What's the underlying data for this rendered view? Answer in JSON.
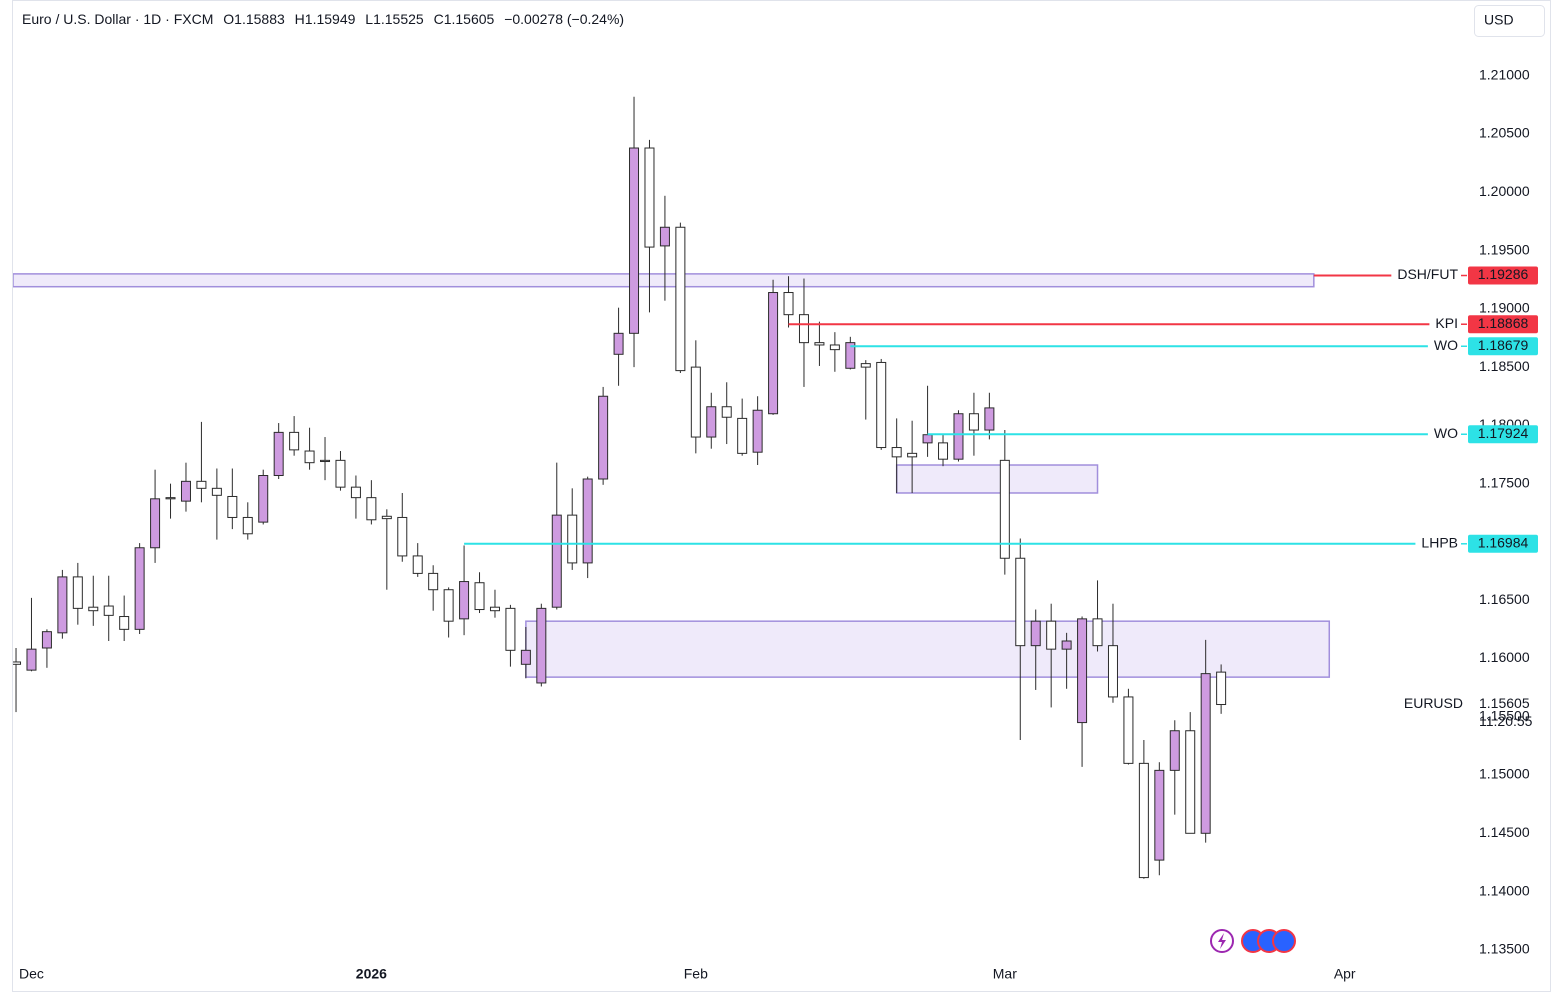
{
  "header": {
    "symbol": "Euro / U.S. Dollar · 1D · FXCM",
    "ohlc_labels": [
      "O",
      "H",
      "L",
      "C"
    ],
    "change": "−0.00278 (−0.24%)",
    "currency": "USD"
  },
  "chart_data": {
    "type": "candlestick",
    "symbol_short": "EURUSD",
    "countdown": "11:20:55",
    "up_color": "#ce9be0",
    "down_color": "#ffffff",
    "border_color": "#2b2b2b",
    "categories": [
      null,
      "Dec",
      null,
      null,
      null,
      null,
      null,
      null,
      null,
      null,
      null,
      null,
      null,
      null,
      null,
      null,
      null,
      null,
      null,
      null,
      null,
      null,
      null,
      "2026",
      null,
      null,
      null,
      null,
      null,
      null,
      null,
      null,
      null,
      null,
      null,
      null,
      null,
      null,
      null,
      null,
      null,
      null,
      null,
      null,
      "Feb",
      null,
      null,
      null,
      null,
      null,
      null,
      null,
      null,
      null,
      null,
      null,
      null,
      null,
      null,
      null,
      null,
      null,
      null,
      null,
      "Mar",
      null,
      null,
      null,
      null,
      null,
      null,
      null,
      null,
      null,
      null,
      null,
      null,
      null,
      null,
      null,
      null,
      null,
      null,
      null,
      null,
      null,
      "Apr",
      null,
      null,
      null,
      null,
      null,
      null,
      null
    ],
    "open": [
      1.1597,
      1.159,
      1.1609,
      1.1622,
      1.167,
      1.1644,
      1.1645,
      1.1636,
      1.1625,
      1.1695,
      1.1738,
      1.1735,
      1.1752,
      1.1746,
      1.1739,
      1.1721,
      1.1717,
      1.1757,
      1.1794,
      1.1778,
      1.177,
      1.177,
      1.1747,
      1.1738,
      1.1722,
      1.1721,
      1.1688,
      1.1673,
      1.1659,
      1.1634,
      1.1665,
      1.1644,
      1.1643,
      1.1595,
      1.1579,
      1.1644,
      1.1723,
      1.1682,
      1.1754,
      1.1861,
      1.1879,
      1.2038,
      1.1954,
      1.197,
      1.185,
      1.179,
      1.1816,
      1.1806,
      1.1777,
      1.181,
      1.1914,
      1.1895,
      1.1871,
      1.1869,
      1.1849,
      1.1853,
      1.1854,
      1.1781,
      1.1776,
      1.1785,
      1.1785,
      1.1771,
      1.181,
      1.1796,
      1.177,
      1.1686,
      1.1611,
      1.1632,
      1.1608,
      1.1545,
      1.1634,
      1.1611,
      1.1567,
      1.151,
      1.1427,
      1.1504,
      1.1538,
      1.145,
      1.15883,
      null,
      null,
      null,
      null,
      null,
      null,
      null,
      null,
      null,
      null,
      null,
      null,
      null,
      null,
      null
    ],
    "high": [
      1.1609,
      1.1652,
      1.1625,
      1.1676,
      1.1682,
      1.1671,
      1.1671,
      1.1654,
      1.1699,
      1.1762,
      1.175,
      1.1768,
      1.1803,
      1.1763,
      1.1763,
      1.1734,
      1.1762,
      1.1802,
      1.1808,
      1.1798,
      1.179,
      1.1778,
      1.1757,
      1.1753,
      1.1728,
      1.1742,
      1.1699,
      1.168,
      1.1661,
      1.1697,
      1.1674,
      1.1659,
      1.1646,
      1.1627,
      1.1647,
      1.1768,
      1.1746,
      1.1756,
      1.1833,
      1.1901,
      1.2082,
      1.2045,
      1.1997,
      1.1974,
      1.1873,
      1.1828,
      1.1837,
      1.1823,
      1.1825,
      1.1925,
      1.1928,
      1.1926,
      1.1889,
      1.188,
      1.1876,
      1.1856,
      1.1857,
      1.1806,
      1.1804,
      1.1834,
      1.1792,
      1.1813,
      1.1828,
      1.1828,
      1.1796,
      1.1703,
      1.1642,
      1.1647,
      1.1622,
      1.1636,
      1.1667,
      1.1647,
      1.1574,
      1.153,
      1.1511,
      1.1547,
      1.1554,
      1.1616,
      1.15949,
      null,
      null,
      null,
      null,
      null,
      null,
      null,
      null,
      null,
      null,
      null,
      null,
      null,
      null,
      null
    ],
    "low": [
      1.1554,
      1.1589,
      1.1592,
      1.1617,
      1.1629,
      1.1628,
      1.1615,
      1.1615,
      1.1621,
      1.1682,
      1.172,
      1.1726,
      1.1734,
      1.1702,
      1.1711,
      1.1702,
      1.1715,
      1.1754,
      1.1774,
      1.1762,
      1.1753,
      1.1744,
      1.172,
      1.1715,
      1.1659,
      1.1683,
      1.167,
      1.1641,
      1.1618,
      1.162,
      1.1639,
      1.1635,
      1.1593,
      1.1583,
      1.1576,
      1.1642,
      1.1676,
      1.1669,
      1.1749,
      1.1834,
      1.185,
      1.1897,
      1.1907,
      1.1845,
      1.1776,
      1.178,
      1.1784,
      1.1774,
      1.1766,
      1.1809,
      1.1884,
      1.1833,
      1.1851,
      1.1846,
      1.1848,
      1.1805,
      1.1779,
      1.1742,
      1.1742,
      1.1773,
      1.1765,
      1.1769,
      1.1774,
      1.1788,
      1.1672,
      1.153,
      1.1573,
      1.1558,
      1.1574,
      1.1507,
      1.1606,
      1.1562,
      1.1509,
      1.1411,
      1.1414,
      1.1466,
      1.145,
      1.1442,
      1.15525,
      null,
      null,
      null,
      null,
      null,
      null,
      null,
      null,
      null,
      null,
      null,
      null,
      null,
      null,
      null
    ],
    "close": [
      1.1595,
      1.1608,
      1.1623,
      1.167,
      1.1643,
      1.1641,
      1.1637,
      1.1625,
      1.1695,
      1.1737,
      1.1737,
      1.1752,
      1.1746,
      1.174,
      1.1721,
      1.1707,
      1.1757,
      1.1794,
      1.1779,
      1.1768,
      1.1769,
      1.1747,
      1.1738,
      1.1719,
      1.172,
      1.1688,
      1.1673,
      1.1659,
      1.1632,
      1.1666,
      1.1642,
      1.1641,
      1.1607,
      1.1607,
      1.1643,
      1.1723,
      1.1682,
      1.1754,
      1.1825,
      1.1879,
      1.2038,
      1.1953,
      1.197,
      1.1847,
      1.179,
      1.1816,
      1.1807,
      1.1776,
      1.1813,
      1.1914,
      1.1895,
      1.1871,
      1.1869,
      1.1865,
      1.1871,
      1.185,
      1.1781,
      1.1773,
      1.1773,
      1.1792,
      1.1771,
      1.181,
      1.1796,
      1.1815,
      1.1686,
      1.1611,
      1.1632,
      1.1608,
      1.1615,
      1.1634,
      1.1611,
      1.1567,
      1.151,
      1.1412,
      1.1504,
      1.1538,
      1.145,
      1.1587,
      1.15605,
      null,
      null,
      null,
      null,
      null,
      null,
      null,
      null,
      null,
      null,
      null,
      null,
      null,
      null,
      null
    ],
    "ylim": [
      1.1343,
      1.2165
    ],
    "yticks": [
      {
        "value": 1.135,
        "label": "1.13500"
      },
      {
        "value": 1.14,
        "label": "1.14000"
      },
      {
        "value": 1.145,
        "label": "1.14500"
      },
      {
        "value": 1.15,
        "label": "1.15000"
      },
      {
        "value": 1.155,
        "label": "1.15500"
      },
      {
        "value": 1.16,
        "label": "1.16000"
      },
      {
        "value": 1.165,
        "label": "1.16500"
      },
      {
        "value": 1.17,
        "label": "1.17000"
      },
      {
        "value": 1.175,
        "label": "1.17500"
      },
      {
        "value": 1.18,
        "label": "1.18000"
      },
      {
        "value": 1.185,
        "label": "1.18500"
      },
      {
        "value": 1.19,
        "label": "1.19000"
      },
      {
        "value": 1.195,
        "label": "1.19500"
      },
      {
        "value": 1.2,
        "label": "1.20000"
      },
      {
        "value": 1.205,
        "label": "1.20500"
      },
      {
        "value": 1.21,
        "label": "1.21000"
      }
    ],
    "zones": [
      {
        "from": 0,
        "to": 84,
        "top": 1.193,
        "bottom": 1.1919
      },
      {
        "from": 57,
        "to": 70,
        "top": 1.1766,
        "bottom": 1.1742
      },
      {
        "from": 33,
        "to": 85,
        "top": 1.1632,
        "bottom": 1.1584
      }
    ],
    "levels": [
      {
        "name": "DSH/FUT",
        "value": 1.19286,
        "color": "#f23645",
        "from": 84
      },
      {
        "name": "KPI",
        "value": 1.18868,
        "color": "#f23645",
        "from": 50
      },
      {
        "name": "WO",
        "value": 1.18679,
        "color": "#2de2e6",
        "from": 54
      },
      {
        "name": "WO",
        "value": 1.17924,
        "color": "#2de2e6",
        "from": 59
      },
      {
        "name": "LHPB",
        "value": 1.16984,
        "color": "#2de2e6",
        "from": 29
      }
    ]
  }
}
